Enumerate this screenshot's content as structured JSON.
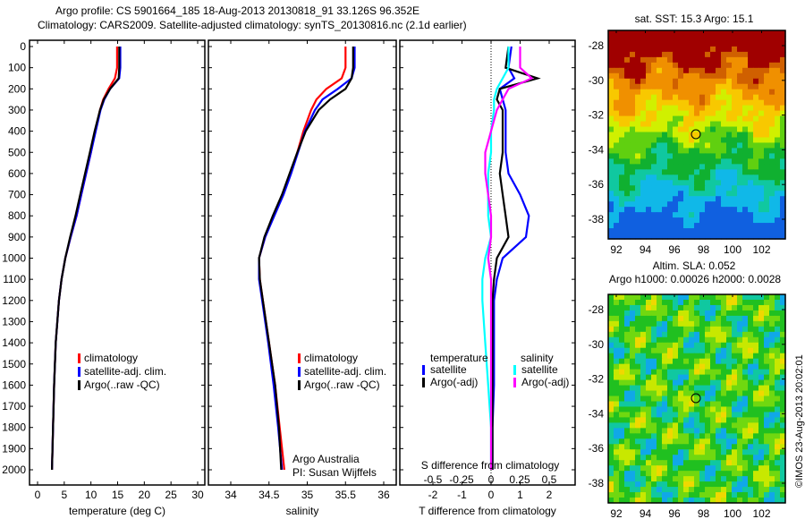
{
  "title": {
    "line1": "Argo profile: CS 5901664_185 18-Aug-2013 20130818_91 33.126S 96.352E",
    "line2": "Climatology: CARS2009. Satellite-adjusted climatology: synTS_20130816.nc (2.1d earlier)"
  },
  "side_label": "©IMOS 23-Aug-2013 20:02:01",
  "colors": {
    "climatology": "#ff0000",
    "satellite": "#0000ff",
    "argo": "#000000",
    "sal_satellite": "#00ffff",
    "sal_argo": "#ff00ff"
  },
  "chart_data": [
    {
      "type": "line",
      "name": "temperature",
      "xlabel": "temperature (deg C)",
      "xlim": [
        -1.5,
        31.5
      ],
      "ylim": [
        2050,
        0
      ],
      "xticks": [
        "0",
        "5",
        "10",
        "15",
        "20",
        "25",
        "30"
      ],
      "yticks": [
        "0",
        "100",
        "200",
        "300",
        "400",
        "500",
        "600",
        "700",
        "800",
        "900",
        "1000",
        "1100",
        "1200",
        "1300",
        "1400",
        "1500",
        "1600",
        "1700",
        "1800",
        "1900",
        "2000"
      ],
      "depth": [
        0,
        100,
        150,
        200,
        250,
        300,
        400,
        500,
        600,
        700,
        800,
        900,
        1000,
        1100,
        1200,
        1400,
        1600,
        1800,
        2000
      ],
      "series": [
        {
          "name": "climatology",
          "values": [
            14.9,
            14.9,
            14.5,
            13.3,
            12.3,
            11.7,
            10.8,
            10,
            9.1,
            8.2,
            7.3,
            6.2,
            5.2,
            4.5,
            4,
            3.4,
            3.1,
            2.9,
            2.7
          ]
        },
        {
          "name": "satellite-adj. clim.",
          "values": [
            15.5,
            15.5,
            15.3,
            13.6,
            12.5,
            11.8,
            10.9,
            10,
            9.1,
            8.2,
            7.3,
            6.2,
            5.2,
            4.5,
            4,
            3.4,
            3.1,
            2.9,
            2.7
          ]
        },
        {
          "name": "Argo(..raw -QC)",
          "values": [
            15.3,
            15.3,
            15.2,
            13.6,
            12.4,
            11.7,
            10.7,
            9.8,
            8.9,
            8,
            7.1,
            6.1,
            5.2,
            4.5,
            4,
            3.4,
            3.1,
            2.9,
            2.7
          ]
        }
      ],
      "legend": [
        "climatology",
        "satellite-adj. clim.",
        "Argo(..raw -QC)"
      ]
    },
    {
      "type": "line",
      "name": "salinity",
      "xlabel": "salinity",
      "xlim": [
        33.7,
        36.2
      ],
      "ylim": [
        2050,
        0
      ],
      "xticks": [
        "34",
        "34.5",
        "35",
        "35.5",
        "36"
      ],
      "depth": [
        0,
        100,
        150,
        200,
        250,
        300,
        400,
        500,
        600,
        700,
        800,
        900,
        1000,
        1100,
        1200,
        1400,
        1600,
        1800,
        2000
      ],
      "series": [
        {
          "name": "climatology",
          "values": [
            35.5,
            35.5,
            35.45,
            35.25,
            35.12,
            35.05,
            34.95,
            34.87,
            34.78,
            34.68,
            34.56,
            34.45,
            34.37,
            34.38,
            34.42,
            34.5,
            34.58,
            34.64,
            34.7
          ]
        },
        {
          "name": "satellite-adj. clim.",
          "values": [
            35.62,
            35.62,
            35.58,
            35.4,
            35.2,
            35.1,
            34.97,
            34.88,
            34.79,
            34.69,
            34.57,
            34.45,
            34.37,
            34.37,
            34.41,
            34.49,
            34.56,
            34.62,
            34.67
          ]
        },
        {
          "name": "Argo(..raw -QC)",
          "values": [
            35.6,
            35.6,
            35.58,
            35.5,
            35.3,
            35.15,
            34.98,
            34.87,
            34.77,
            34.67,
            34.55,
            34.44,
            34.37,
            34.38,
            34.42,
            34.5,
            34.58,
            34.63,
            34.66
          ]
        }
      ],
      "legend": [
        "climatology",
        "satellite-adj. clim.",
        "Argo(..raw -QC)"
      ],
      "note1": "Argo Australia",
      "note2": "PI: Susan Wijffels"
    },
    {
      "type": "line",
      "name": "difference",
      "xlabel": "T difference from climatology",
      "x2label": "S difference from climatology",
      "xlim": [
        -3,
        3
      ],
      "ylim": [
        2050,
        0
      ],
      "xticks": [
        "-2",
        "-1",
        "0",
        "1",
        "2"
      ],
      "x2ticks": [
        "-0.5",
        "-0.25",
        "0",
        "0.25",
        "0.5"
      ],
      "depth": [
        0,
        100,
        150,
        200,
        250,
        300,
        400,
        500,
        600,
        700,
        800,
        900,
        1000,
        1100,
        1200,
        1400,
        1600,
        1800,
        2000
      ],
      "series": [
        {
          "name": "T satellite",
          "values": [
            0.7,
            0.6,
            0.8,
            0.3,
            0.4,
            0.5,
            0.5,
            0.5,
            0.6,
            1.0,
            1.3,
            1.2,
            0.4,
            0.2,
            0.1,
            0.1,
            0.1,
            0.05,
            0.05
          ]
        },
        {
          "name": "T Argo(-adj)",
          "values": [
            0.6,
            0.5,
            1.6,
            0.3,
            0.2,
            0.4,
            0.4,
            0.4,
            0.3,
            0.4,
            0.5,
            0.6,
            0.2,
            0.1,
            0.05,
            0.05,
            0.05,
            0.05,
            0.05
          ]
        },
        {
          "name": "S satellite",
          "values": [
            0.3,
            0.3,
            0.2,
            0.1,
            0.05,
            0.05,
            0,
            0,
            -0.05,
            -0.05,
            -0.05,
            0,
            -0.1,
            -0.15,
            -0.15,
            -0.1,
            -0.05,
            0,
            0
          ]
        },
        {
          "name": "S Argo(-adj)",
          "values": [
            0.5,
            0.5,
            0.7,
            0.3,
            0.2,
            0.1,
            0,
            -0.1,
            -0.1,
            -0.05,
            0,
            0,
            -0.05,
            0,
            0,
            0,
            0,
            0,
            0
          ]
        }
      ],
      "legend": {
        "temperature": "temperature",
        "salinity": "salinity",
        "t_sat": "satellite",
        "t_argo": "Argo(-adj)",
        "s_sat": "satellite",
        "s_argo": "Argo(-adj)"
      }
    },
    {
      "type": "heatmap",
      "name": "sst-map",
      "title": "sat. SST: 15.3 Argo: 15.1",
      "xticks": [
        "92",
        "94",
        "96",
        "98",
        "100",
        "102"
      ],
      "yticks": [
        "-28",
        "-30",
        "-32",
        "-34",
        "-36",
        "-38"
      ]
    },
    {
      "type": "heatmap",
      "name": "sla-map",
      "title1": "Altim. SLA: 0.052",
      "title2": "Argo h1000: 0.00026 h2000: 0.0028",
      "xticks": [
        "92",
        "94",
        "96",
        "98",
        "100",
        "102"
      ],
      "yticks": [
        "-28",
        "-30",
        "-32",
        "-34",
        "-36",
        "-38"
      ]
    }
  ]
}
